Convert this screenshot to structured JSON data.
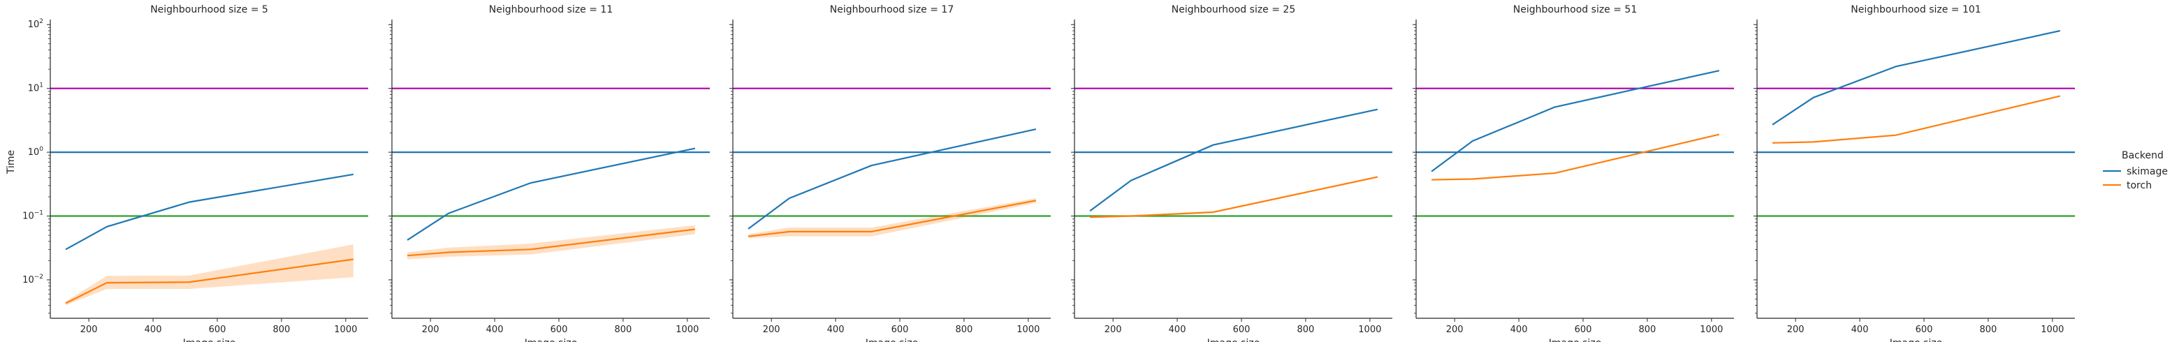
{
  "chart_data": {
    "type": "line",
    "legend": {
      "title": "Backend",
      "entries": [
        {
          "name": "skimage",
          "color": "#1f77b4"
        },
        {
          "name": "torch",
          "color": "#ff7f0e"
        }
      ]
    },
    "ylabel": "Time",
    "xlabel": "Image size",
    "yscale": "log",
    "ylim": [
      0.0025,
      120
    ],
    "xlim": [
      80,
      1070
    ],
    "x_ticks": [
      200,
      400,
      600,
      800,
      1000
    ],
    "y_ticks": [
      {
        "value": 0.01,
        "base": "10",
        "exp": "−2"
      },
      {
        "value": 0.1,
        "base": "10",
        "exp": "−1"
      },
      {
        "value": 1,
        "base": "10",
        "exp": "0"
      },
      {
        "value": 10,
        "base": "10",
        "exp": "1"
      },
      {
        "value": 100,
        "base": "10",
        "exp": "2"
      }
    ],
    "reference_lines": [
      {
        "y": 10,
        "color": "#aa00aa"
      },
      {
        "y": 1,
        "color": "#1f77b4"
      },
      {
        "y": 0.1,
        "color": "#2ca02c"
      }
    ],
    "x": [
      128,
      256,
      512,
      1024
    ],
    "panels": [
      {
        "title": "Neighbourhood size = 5",
        "series": [
          {
            "name": "skimage",
            "values": [
              0.03,
              0.068,
              0.165,
              0.45
            ]
          },
          {
            "name": "torch",
            "values": [
              0.0043,
              0.009,
              0.0092,
              0.021
            ],
            "ci_low": [
              0.004,
              0.0072,
              0.0072,
              0.011
            ],
            "ci_high": [
              0.0046,
              0.0115,
              0.0117,
              0.036
            ]
          }
        ]
      },
      {
        "title": "Neighbourhood size = 11",
        "series": [
          {
            "name": "skimage",
            "values": [
              0.042,
              0.11,
              0.33,
              1.15
            ]
          },
          {
            "name": "torch",
            "values": [
              0.024,
              0.027,
              0.03,
              0.062
            ],
            "ci_low": [
              0.021,
              0.023,
              0.025,
              0.052
            ],
            "ci_high": [
              0.027,
              0.032,
              0.037,
              0.072
            ]
          }
        ]
      },
      {
        "title": "Neighbourhood size = 17",
        "series": [
          {
            "name": "skimage",
            "values": [
              0.063,
              0.19,
              0.62,
              2.3
            ]
          },
          {
            "name": "torch",
            "values": [
              0.048,
              0.057,
              0.057,
              0.175
            ],
            "ci_low": [
              0.045,
              0.048,
              0.048,
              0.16
            ],
            "ci_high": [
              0.052,
              0.066,
              0.066,
              0.19
            ]
          }
        ]
      },
      {
        "title": "Neighbourhood size = 25",
        "series": [
          {
            "name": "skimage",
            "values": [
              0.12,
              0.36,
              1.3,
              4.7
            ]
          },
          {
            "name": "torch",
            "values": [
              0.096,
              0.1,
              0.115,
              0.41
            ],
            "ci_low": [
              0.093,
              0.097,
              0.111,
              0.4
            ],
            "ci_high": [
              0.099,
              0.103,
              0.119,
              0.42
            ]
          }
        ]
      },
      {
        "title": "Neighbourhood size = 51",
        "series": [
          {
            "name": "skimage",
            "values": [
              0.5,
              1.5,
              5.1,
              19
            ]
          },
          {
            "name": "torch",
            "values": [
              0.37,
              0.38,
              0.47,
              1.9
            ],
            "ci_low": [
              0.36,
              0.37,
              0.46,
              1.85
            ],
            "ci_high": [
              0.38,
              0.39,
              0.48,
              1.95
            ]
          }
        ]
      },
      {
        "title": "Neighbourhood size = 101",
        "series": [
          {
            "name": "skimage",
            "values": [
              2.7,
              7.2,
              22,
              80
            ]
          },
          {
            "name": "torch",
            "values": [
              1.4,
              1.45,
              1.85,
              7.6
            ],
            "ci_low": [
              1.37,
              1.42,
              1.81,
              7.4
            ],
            "ci_high": [
              1.43,
              1.48,
              1.89,
              7.8
            ]
          }
        ]
      }
    ]
  }
}
